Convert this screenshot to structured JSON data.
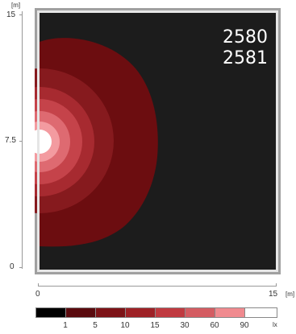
{
  "y_axis": {
    "unit": "[m]",
    "ticks": [
      "15",
      "7.5",
      "0"
    ]
  },
  "x_axis": {
    "unit": "[m]",
    "ticks": [
      "0",
      "15"
    ]
  },
  "overlay_text": {
    "line1": "2580",
    "line2": "2581"
  },
  "legend": {
    "unit": "lx",
    "labels": [
      "1",
      "5",
      "10",
      "15",
      "30",
      "60",
      "90"
    ],
    "colors": [
      "#000000",
      "#5a0a0e",
      "#7d1317",
      "#9e2126",
      "#c03a40",
      "#d45c62",
      "#f08a8f",
      "#ffffff"
    ]
  },
  "contour_colors": {
    "background": "#1c1c1c",
    "frame": "#a0a0a0",
    "levels": [
      "#6c0d10",
      "#861a1e",
      "#a72a30",
      "#c5434a",
      "#de6a71",
      "#f39ba0",
      "#ffffff"
    ]
  }
}
